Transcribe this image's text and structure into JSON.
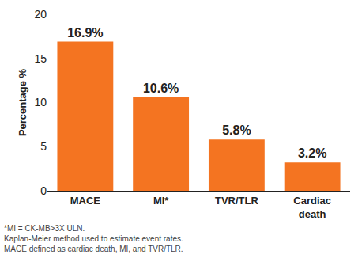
{
  "chart_data": {
    "type": "bar",
    "categories": [
      "MACE",
      "MI*",
      "TVR/TLR",
      "Cardiac death"
    ],
    "values": [
      16.9,
      10.6,
      5.8,
      3.2
    ],
    "value_labels": [
      "16.9%",
      "10.6%",
      "5.8%",
      "3.2%"
    ],
    "data_labels": true,
    "color": "#f47421",
    "y_label": "Percentage %",
    "ylim": [
      0,
      20
    ],
    "yticks": [
      0,
      5,
      10,
      15,
      20
    ],
    "grid": false,
    "annotations": [
      "*MI = CK-MB>3X ULN.",
      "Kaplan-Meier method used to estimate event rates.",
      "MACE defined as cardiac death, MI, and TVR/TLR."
    ]
  }
}
